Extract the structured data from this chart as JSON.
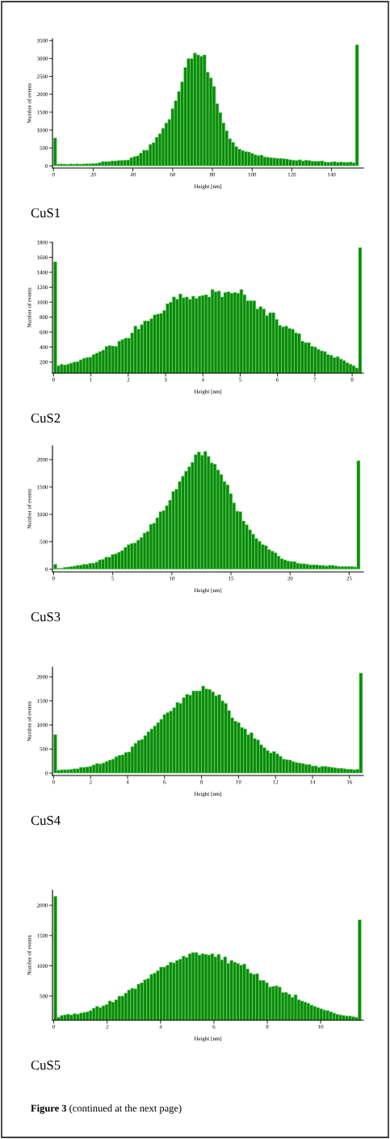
{
  "chart_data": [
    {
      "type": "histogram",
      "title": "CuS1",
      "xlabel": "Height [nm]",
      "ylabel": "Number of events",
      "color": "#0b8a0b",
      "xlim": [
        -0.5,
        156
      ],
      "ylim": [
        -60,
        3550
      ],
      "xticks": [
        0,
        20,
        40,
        60,
        80,
        100,
        120,
        140
      ],
      "yticks": [
        0,
        500,
        1000,
        1500,
        2000,
        2500,
        3000,
        3500
      ],
      "bins": [
        0,
        1.6,
        3.2,
        4.8,
        6.4,
        8,
        9.6,
        11.2,
        12.8,
        14.4,
        16,
        17.6,
        19.2,
        20.8,
        22.4,
        24,
        25.6,
        27.2,
        28.8,
        30.4,
        32,
        33.6,
        35.2,
        36.8,
        38.4,
        40,
        41.6,
        43.2,
        44.8,
        46.4,
        48,
        49.6,
        51.2,
        52.8,
        54.4,
        56,
        57.6,
        59.2,
        60.8,
        62.4,
        64,
        65.6,
        67.2,
        68.8,
        70.4,
        72,
        73.6,
        75.2,
        76.8,
        78.4,
        80,
        81.6,
        83.2,
        84.8,
        86.4,
        88,
        89.6,
        91.2,
        92.8,
        94.4,
        96,
        97.6,
        99.2,
        100.8,
        102.4,
        104,
        105.6,
        107.2,
        108.8,
        110.4,
        112,
        113.6,
        115.2,
        116.8,
        118.4,
        120,
        121.6,
        123.2,
        124.8,
        126.4,
        128,
        129.6,
        131.2,
        132.8,
        134.4,
        136,
        137.6,
        139.2,
        140.8,
        142.4,
        144,
        145.6,
        147.2,
        148.8,
        150.4,
        152,
        153.6
      ],
      "values": [
        780,
        50,
        55,
        50,
        45,
        55,
        50,
        55,
        50,
        55,
        60,
        60,
        65,
        70,
        90,
        120,
        120,
        120,
        140,
        140,
        150,
        155,
        160,
        165,
        230,
        260,
        280,
        360,
        440,
        440,
        600,
        650,
        800,
        900,
        1050,
        1200,
        1300,
        1600,
        1820,
        2080,
        2350,
        2750,
        3000,
        3000,
        3150,
        3100,
        3060,
        3100,
        2620,
        2460,
        2220,
        1740,
        1490,
        1200,
        980,
        760,
        660,
        540,
        470,
        430,
        400,
        390,
        350,
        310,
        290,
        300,
        250,
        240,
        230,
        220,
        210,
        210,
        200,
        190,
        170,
        160,
        150,
        170,
        140,
        160,
        150,
        130,
        130,
        130,
        140,
        110,
        100,
        110,
        120,
        100,
        110,
        100,
        100,
        110,
        90,
        3380
      ]
    },
    {
      "type": "histogram",
      "title": "CuS2",
      "xlabel": "Height [nm]",
      "ylabel": "Number of events",
      "color": "#0b8a0b",
      "xlim": [
        -0.03,
        8.3
      ],
      "ylim": [
        50,
        1800
      ],
      "xticks": [
        0,
        1,
        2,
        3,
        4,
        5,
        6,
        7,
        8
      ],
      "yticks": [
        200,
        400,
        600,
        800,
        1000,
        1200,
        1400,
        1600,
        1800
      ],
      "bins": [
        0,
        0.086,
        0.172,
        0.258,
        0.344,
        0.43,
        0.516,
        0.602,
        0.688,
        0.774,
        0.86,
        0.946,
        1.032,
        1.118,
        1.204,
        1.29,
        1.376,
        1.462,
        1.548,
        1.634,
        1.72,
        1.806,
        1.892,
        1.978,
        2.064,
        2.15,
        2.236,
        2.322,
        2.408,
        2.494,
        2.58,
        2.666,
        2.752,
        2.838,
        2.924,
        3.01,
        3.096,
        3.182,
        3.268,
        3.354,
        3.44,
        3.526,
        3.612,
        3.698,
        3.784,
        3.87,
        3.956,
        4.042,
        4.128,
        4.214,
        4.3,
        4.386,
        4.472,
        4.558,
        4.644,
        4.73,
        4.816,
        4.902,
        4.988,
        5.074,
        5.16,
        5.246,
        5.332,
        5.418,
        5.504,
        5.59,
        5.676,
        5.762,
        5.848,
        5.934,
        6.02,
        6.106,
        6.192,
        6.278,
        6.364,
        6.45,
        6.536,
        6.622,
        6.708,
        6.794,
        6.88,
        6.966,
        7.052,
        7.138,
        7.224,
        7.31,
        7.396,
        7.482,
        7.568,
        7.654,
        7.74,
        7.826,
        7.912,
        7.998,
        8.084,
        8.17,
        8.256
      ],
      "values": [
        1540,
        150,
        170,
        160,
        170,
        185,
        200,
        205,
        230,
        250,
        260,
        265,
        300,
        320,
        340,
        360,
        410,
        420,
        415,
        410,
        480,
        500,
        520,
        520,
        590,
        680,
        640,
        700,
        750,
        750,
        780,
        830,
        840,
        850,
        890,
        980,
        1000,
        1070,
        1040,
        1110,
        1060,
        1070,
        1040,
        1080,
        1050,
        1080,
        1090,
        1100,
        1070,
        1170,
        1140,
        1150,
        1070,
        1130,
        1140,
        1120,
        1130,
        1120,
        1170,
        1100,
        1020,
        1020,
        1020,
        910,
        940,
        910,
        820,
        860,
        860,
        770,
        690,
        670,
        680,
        650,
        640,
        590,
        580,
        480,
        460,
        460,
        410,
        400,
        370,
        350,
        340,
        300,
        290,
        260,
        270,
        240,
        220,
        190,
        170,
        150,
        120,
        1730
      ]
    },
    {
      "type": "histogram",
      "title": "CuS3",
      "xlabel": "Height [nm]",
      "ylabel": "Number of events",
      "color": "#0b8a0b",
      "xlim": [
        -0.1,
        26.2
      ],
      "ylim": [
        -50,
        2250
      ],
      "xticks": [
        0,
        5,
        10,
        15,
        20,
        25
      ],
      "yticks": [
        0,
        500,
        1000,
        1500,
        2000
      ],
      "bins": [
        0,
        0.27,
        0.54,
        0.81,
        1.08,
        1.35,
        1.62,
        1.89,
        2.16,
        2.43,
        2.7,
        2.97,
        3.24,
        3.51,
        3.78,
        4.05,
        4.32,
        4.59,
        4.86,
        5.13,
        5.4,
        5.67,
        5.94,
        6.21,
        6.48,
        6.75,
        7.02,
        7.29,
        7.56,
        7.83,
        8.1,
        8.37,
        8.64,
        8.91,
        9.18,
        9.45,
        9.72,
        9.99,
        10.26,
        10.53,
        10.8,
        11.07,
        11.34,
        11.61,
        11.88,
        12.15,
        12.42,
        12.69,
        12.96,
        13.23,
        13.5,
        13.77,
        14.04,
        14.31,
        14.58,
        14.85,
        15.12,
        15.39,
        15.66,
        15.93,
        16.2,
        16.47,
        16.74,
        17.01,
        17.28,
        17.55,
        17.82,
        18.09,
        18.36,
        18.63,
        18.9,
        19.17,
        19.44,
        19.71,
        19.98,
        20.25,
        20.52,
        20.79,
        21.06,
        21.33,
        21.6,
        21.87,
        22.14,
        22.41,
        22.68,
        22.95,
        23.22,
        23.49,
        23.76,
        24.03,
        24.3,
        24.57,
        24.84,
        25.11,
        25.38,
        25.65,
        25.92
      ],
      "values": [
        90,
        20,
        20,
        35,
        40,
        50,
        55,
        70,
        75,
        90,
        90,
        110,
        110,
        130,
        170,
        180,
        220,
        220,
        270,
        280,
        310,
        340,
        400,
        450,
        470,
        480,
        530,
        580,
        660,
        690,
        820,
        840,
        940,
        1050,
        1070,
        1160,
        1260,
        1420,
        1460,
        1600,
        1700,
        1790,
        1870,
        1950,
        2090,
        2140,
        2080,
        2150,
        2060,
        1940,
        1920,
        1810,
        1730,
        1600,
        1540,
        1380,
        1210,
        1060,
        1050,
        880,
        810,
        720,
        640,
        560,
        510,
        450,
        430,
        360,
        330,
        300,
        240,
        190,
        170,
        150,
        140,
        140,
        110,
        100,
        100,
        90,
        80,
        80,
        80,
        70,
        70,
        60,
        70,
        70,
        60,
        50,
        50,
        50,
        50,
        50,
        40,
        1980
      ]
    },
    {
      "type": "histogram",
      "title": "CuS4",
      "xlabel": "Height [nm]",
      "ylabel": "Number of events",
      "color": "#0b8a0b",
      "xlim": [
        -0.06,
        16.75
      ],
      "ylim": [
        -50,
        2200
      ],
      "xticks": [
        0,
        2,
        4,
        6,
        8,
        10,
        12,
        14,
        16
      ],
      "yticks": [
        0,
        500,
        1000,
        1500,
        2000
      ],
      "bins": [
        0,
        0.174,
        0.348,
        0.522,
        0.696,
        0.87,
        1.044,
        1.218,
        1.392,
        1.566,
        1.74,
        1.914,
        2.088,
        2.262,
        2.436,
        2.61,
        2.784,
        2.958,
        3.132,
        3.306,
        3.48,
        3.654,
        3.828,
        4.002,
        4.176,
        4.35,
        4.524,
        4.698,
        4.872,
        5.046,
        5.22,
        5.394,
        5.568,
        5.742,
        5.916,
        6.09,
        6.264,
        6.438,
        6.612,
        6.786,
        6.96,
        7.134,
        7.308,
        7.482,
        7.656,
        7.83,
        8.004,
        8.178,
        8.352,
        8.526,
        8.7,
        8.874,
        9.048,
        9.222,
        9.396,
        9.57,
        9.744,
        9.918,
        10.092,
        10.266,
        10.44,
        10.614,
        10.788,
        10.962,
        11.136,
        11.31,
        11.484,
        11.658,
        11.832,
        12.006,
        12.18,
        12.354,
        12.528,
        12.702,
        12.876,
        13.05,
        13.224,
        13.398,
        13.572,
        13.746,
        13.92,
        14.094,
        14.268,
        14.442,
        14.616,
        14.79,
        14.964,
        15.138,
        15.312,
        15.486,
        15.66,
        15.834,
        16.008,
        16.182,
        16.356,
        16.53,
        16.704
      ],
      "values": [
        800,
        60,
        70,
        70,
        70,
        80,
        90,
        90,
        120,
        120,
        130,
        140,
        170,
        200,
        190,
        210,
        240,
        270,
        290,
        340,
        370,
        380,
        430,
        440,
        550,
        620,
        680,
        700,
        780,
        860,
        920,
        980,
        1050,
        1120,
        1220,
        1260,
        1290,
        1360,
        1470,
        1450,
        1570,
        1640,
        1620,
        1710,
        1710,
        1710,
        1810,
        1750,
        1740,
        1690,
        1610,
        1630,
        1500,
        1450,
        1300,
        1150,
        1080,
        1050,
        950,
        920,
        800,
        840,
        720,
        690,
        590,
        530,
        470,
        420,
        450,
        400,
        350,
        290,
        280,
        270,
        240,
        220,
        210,
        200,
        180,
        180,
        150,
        150,
        120,
        140,
        140,
        130,
        120,
        110,
        100,
        100,
        90,
        80,
        80,
        70,
        80,
        2080
      ]
    },
    {
      "type": "histogram",
      "title": "CuS5",
      "xlabel": "Height [nm]",
      "ylabel": "Number of events",
      "color": "#0b8a0b",
      "xlim": [
        -0.05,
        11.6
      ],
      "ylim": [
        100,
        2250
      ],
      "xticks": [
        0,
        2,
        4,
        6,
        8,
        10
      ],
      "yticks": [
        500,
        1000,
        1500,
        2000
      ],
      "annotations": [
        "Figure 3",
        "(continued at the next page)"
      ],
      "bins": [
        0,
        0.12,
        0.24,
        0.36,
        0.48,
        0.6,
        0.72,
        0.84,
        0.96,
        1.08,
        1.2,
        1.32,
        1.44,
        1.56,
        1.68,
        1.8,
        1.92,
        2.04,
        2.16,
        2.28,
        2.4,
        2.52,
        2.64,
        2.76,
        2.88,
        3,
        3.12,
        3.24,
        3.36,
        3.48,
        3.6,
        3.72,
        3.84,
        3.96,
        4.08,
        4.2,
        4.32,
        4.44,
        4.56,
        4.68,
        4.8,
        4.92,
        5.04,
        5.16,
        5.28,
        5.4,
        5.52,
        5.64,
        5.76,
        5.88,
        6,
        6.12,
        6.24,
        6.36,
        6.48,
        6.6,
        6.72,
        6.84,
        6.96,
        7.08,
        7.2,
        7.32,
        7.44,
        7.56,
        7.68,
        7.8,
        7.92,
        8.04,
        8.16,
        8.28,
        8.4,
        8.52,
        8.64,
        8.76,
        8.88,
        9,
        9.12,
        9.24,
        9.36,
        9.48,
        9.6,
        9.72,
        9.84,
        9.96,
        10.08,
        10.2,
        10.32,
        10.44,
        10.56,
        10.68,
        10.8,
        10.92,
        11.04,
        11.16,
        11.28,
        11.4,
        11.52
      ],
      "values": [
        2150,
        150,
        180,
        190,
        200,
        190,
        210,
        200,
        220,
        230,
        240,
        260,
        300,
        330,
        310,
        340,
        360,
        420,
        400,
        440,
        500,
        500,
        550,
        600,
        630,
        620,
        700,
        720,
        770,
        790,
        860,
        880,
        920,
        980,
        980,
        1010,
        1060,
        1050,
        1090,
        1110,
        1160,
        1140,
        1200,
        1220,
        1220,
        1180,
        1200,
        1190,
        1180,
        1200,
        1150,
        1190,
        1100,
        1150,
        1040,
        1090,
        1060,
        1040,
        1010,
        1030,
        950,
        880,
        860,
        870,
        760,
        760,
        720,
        650,
        660,
        670,
        650,
        560,
        560,
        530,
        480,
        520,
        440,
        420,
        400,
        380,
        350,
        330,
        310,
        290,
        270,
        260,
        240,
        220,
        200,
        190,
        180,
        170,
        170,
        160,
        150,
        1760
      ]
    }
  ]
}
